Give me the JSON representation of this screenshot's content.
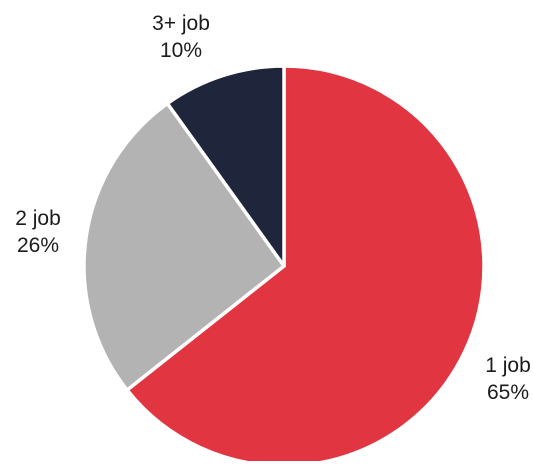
{
  "chart_data": {
    "type": "pie",
    "title": "",
    "slices": [
      {
        "label": "1 job",
        "value": 65,
        "value_label": "65%",
        "color": "#e13641"
      },
      {
        "label": "2 job",
        "value": 26,
        "value_label": "26%",
        "color": "#b3b3b3"
      },
      {
        "label": "3+ job",
        "value": 10,
        "value_label": "10%",
        "color": "#1f253a"
      }
    ],
    "start": "12 o'clock",
    "direction": "clockwise",
    "separator_color": "#ffffff",
    "legend": "none",
    "labels": "outside"
  }
}
